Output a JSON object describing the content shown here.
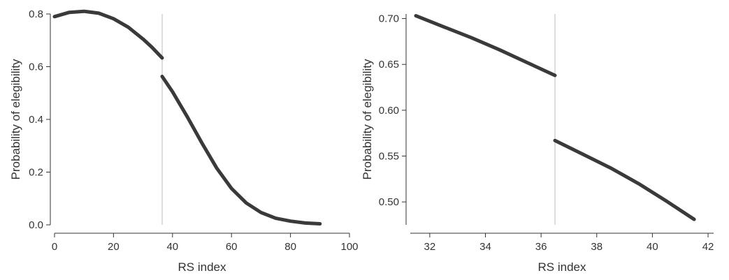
{
  "chart_data": [
    {
      "type": "line",
      "xlabel": "RS index",
      "ylabel": "Probability of elegibility",
      "xlim": [
        0,
        100
      ],
      "ylim": [
        0,
        0.8
      ],
      "xticks": [
        0,
        20,
        40,
        60,
        80,
        100
      ],
      "yticks": [
        0.0,
        0.2,
        0.4,
        0.6,
        0.8
      ],
      "xtick_labels": [
        "0",
        "20",
        "40",
        "60",
        "80",
        "100"
      ],
      "ytick_labels": [
        "0.0",
        "0.2",
        "0.4",
        "0.6",
        "0.8"
      ],
      "cutoff": 36.5,
      "segments": [
        {
          "x": [
            0,
            5,
            10,
            15,
            20,
            25,
            30,
            33,
            36.5
          ],
          "y": [
            0.79,
            0.806,
            0.81,
            0.803,
            0.782,
            0.75,
            0.705,
            0.674,
            0.633
          ]
        },
        {
          "x": [
            36.5,
            40,
            45,
            50,
            55,
            60,
            65,
            70,
            75,
            80,
            85,
            90
          ],
          "y": [
            0.563,
            0.505,
            0.41,
            0.31,
            0.215,
            0.138,
            0.083,
            0.047,
            0.025,
            0.014,
            0.007,
            0.004
          ]
        }
      ]
    },
    {
      "type": "line",
      "xlabel": "RS index",
      "ylabel": "Probability of elegibility",
      "xlim": [
        31.3,
        42.2
      ],
      "ylim": [
        0.475,
        0.705
      ],
      "xticks": [
        32,
        34,
        36,
        38,
        40,
        42
      ],
      "yticks": [
        0.5,
        0.55,
        0.6,
        0.65,
        0.7
      ],
      "xtick_labels": [
        "32",
        "34",
        "36",
        "38",
        "40",
        "42"
      ],
      "ytick_labels": [
        "0.50",
        "0.55",
        "0.60",
        "0.65",
        "0.70"
      ],
      "cutoff": 36.5,
      "segments": [
        {
          "x": [
            31.5,
            32.5,
            33.5,
            34.5,
            35.5,
            36.5
          ],
          "y": [
            0.703,
            0.691,
            0.679,
            0.666,
            0.652,
            0.638
          ]
        },
        {
          "x": [
            36.5,
            37.5,
            38.5,
            39.5,
            40.5,
            41.5
          ],
          "y": [
            0.567,
            0.552,
            0.537,
            0.52,
            0.501,
            0.481
          ]
        }
      ]
    }
  ]
}
